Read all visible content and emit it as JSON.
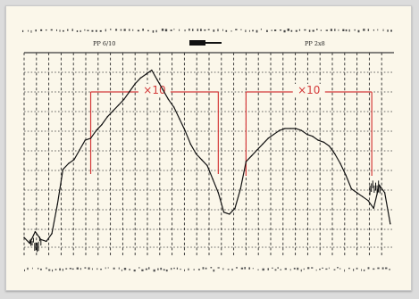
{
  "chart_data": {
    "type": "line",
    "title": "",
    "header_labels": [
      "PP 6/10",
      "PP 2x8"
    ],
    "xlabel": "",
    "ylabel": "",
    "annotations": [
      {
        "text": "×10",
        "span": [
          0.18,
          0.525
        ]
      },
      {
        "text": "×10",
        "span": [
          0.6,
          0.94
        ]
      }
    ],
    "series": [
      {
        "x": [
          0.0,
          0.015,
          0.03,
          0.045,
          0.06,
          0.075,
          0.09,
          0.105,
          0.12,
          0.135,
          0.15,
          0.165,
          0.18,
          0.195,
          0.21,
          0.225,
          0.24,
          0.255,
          0.27,
          0.285,
          0.3,
          0.315,
          0.33,
          0.345,
          0.36,
          0.375,
          0.39,
          0.405,
          0.42,
          0.435,
          0.45,
          0.465,
          0.48,
          0.495,
          0.51,
          0.525,
          0.54,
          0.555,
          0.57,
          0.585,
          0.6,
          0.615,
          0.63,
          0.645,
          0.66,
          0.675,
          0.69,
          0.705,
          0.72,
          0.735,
          0.75,
          0.765,
          0.78,
          0.795,
          0.81,
          0.825,
          0.84,
          0.855,
          0.87,
          0.885,
          0.9,
          0.915,
          0.93,
          0.945,
          0.96,
          0.975,
          0.99
        ],
        "y": [
          0.05,
          0.02,
          0.08,
          0.04,
          0.03,
          0.07,
          0.22,
          0.4,
          0.43,
          0.45,
          0.5,
          0.55,
          0.56,
          0.6,
          0.63,
          0.67,
          0.7,
          0.73,
          0.76,
          0.8,
          0.84,
          0.87,
          0.89,
          0.91,
          0.86,
          0.81,
          0.76,
          0.72,
          0.66,
          0.6,
          0.53,
          0.48,
          0.45,
          0.42,
          0.35,
          0.28,
          0.18,
          0.17,
          0.2,
          0.3,
          0.44,
          0.47,
          0.5,
          0.53,
          0.56,
          0.58,
          0.6,
          0.61,
          0.61,
          0.61,
          0.6,
          0.58,
          0.57,
          0.55,
          0.54,
          0.52,
          0.48,
          0.43,
          0.37,
          0.3,
          0.28,
          0.26,
          0.24,
          0.2,
          0.32,
          0.28,
          0.12
        ]
      }
    ]
  }
}
